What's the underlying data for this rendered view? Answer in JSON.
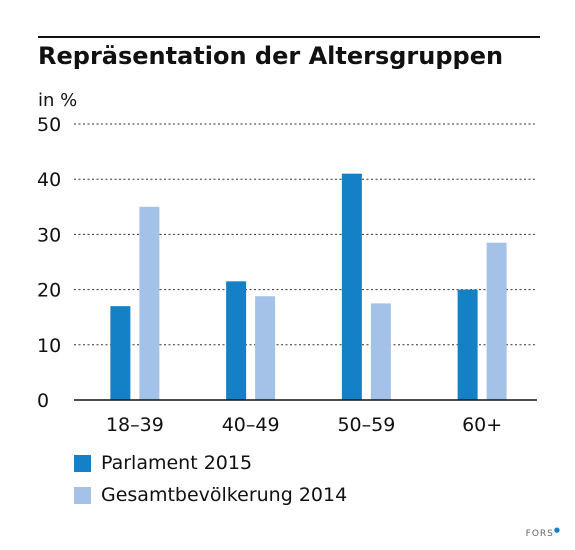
{
  "chart_data": {
    "type": "bar",
    "title": "Repräsentation der Altersgruppen",
    "ylabel": "in %",
    "ylim": [
      0,
      50
    ],
    "yticks": [
      0,
      10,
      20,
      30,
      40,
      50
    ],
    "grid": true,
    "legend_position": "bottom-left",
    "categories": [
      "18–39",
      "40–49",
      "50–59",
      "60+"
    ],
    "series": [
      {
        "name": "Parlament 2015",
        "color": "#1480c6",
        "values": [
          17,
          21.5,
          41,
          20
        ]
      },
      {
        "name": "Gesamtbevölkerung 2014",
        "color": "#a4c2e7",
        "values": [
          35,
          18.8,
          17.5,
          28.5
        ]
      }
    ]
  },
  "footer": {
    "brand": "FORS"
  }
}
